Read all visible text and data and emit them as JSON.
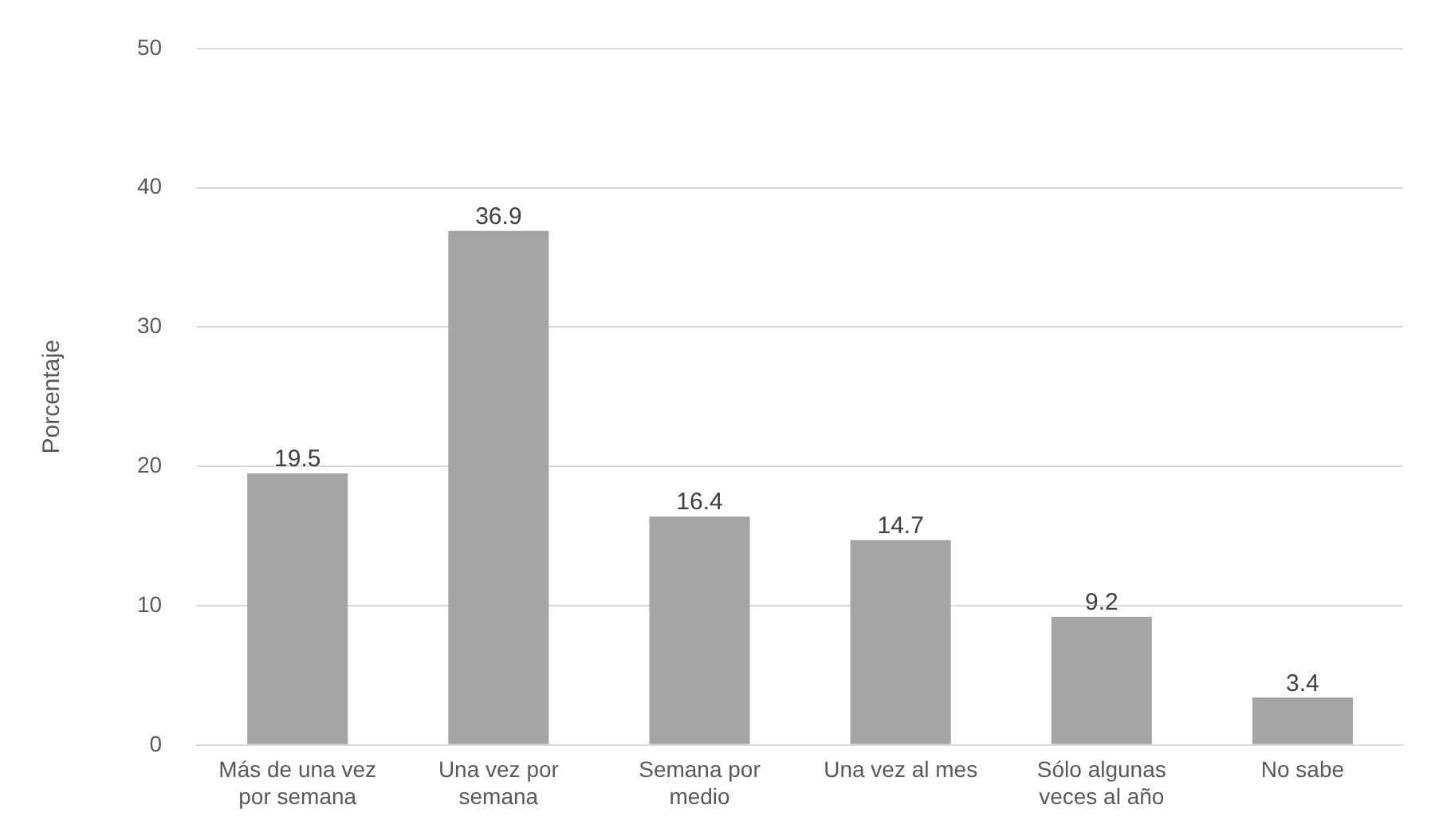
{
  "chart_data": {
    "type": "bar",
    "ylabel": "Porcentaje",
    "categories": [
      "Más de una vez por semana",
      "Una vez por semana",
      "Semana por medio",
      "Una vez al mes",
      "Sólo algunas veces al año",
      "No sabe"
    ],
    "values": [
      19.5,
      36.9,
      16.4,
      14.7,
      9.2,
      3.4
    ],
    "color": "#a5a5a5",
    "ylim": [
      0,
      50
    ],
    "yticks": [
      0,
      10,
      20,
      30,
      40,
      50
    ],
    "grid": "y",
    "data_labels": true,
    "legend": false
  }
}
